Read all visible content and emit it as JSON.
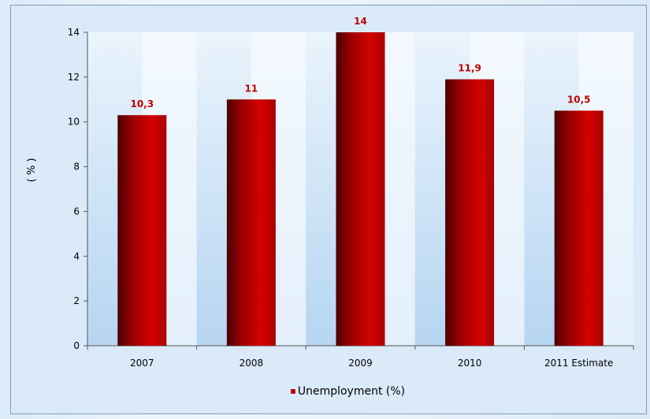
{
  "chart_data": {
    "type": "bar",
    "categories": [
      "2007",
      "2008",
      "2009",
      "2010",
      "2011 Estimate"
    ],
    "series": [
      {
        "name": "Unemployment  (%)",
        "values": [
          10.3,
          11,
          14,
          11.9,
          10.5
        ],
        "labels": [
          "10,3",
          "11",
          "14",
          "11,9",
          "10,5"
        ],
        "color": "#c00000"
      }
    ],
    "title": "",
    "xlabel": "",
    "ylabel": "( % )",
    "ylim": [
      0,
      14
    ],
    "yticks": [
      "0",
      "2",
      "4",
      "6",
      "8",
      "10",
      "12",
      "14"
    ],
    "grid": false,
    "legend_position": "bottom"
  },
  "colors": {
    "bar": "#c00000",
    "bar_dark": "#5a0000",
    "label": "#c00000",
    "band_light": "#eef7fd",
    "band_dark": "#c0dcf4"
  }
}
